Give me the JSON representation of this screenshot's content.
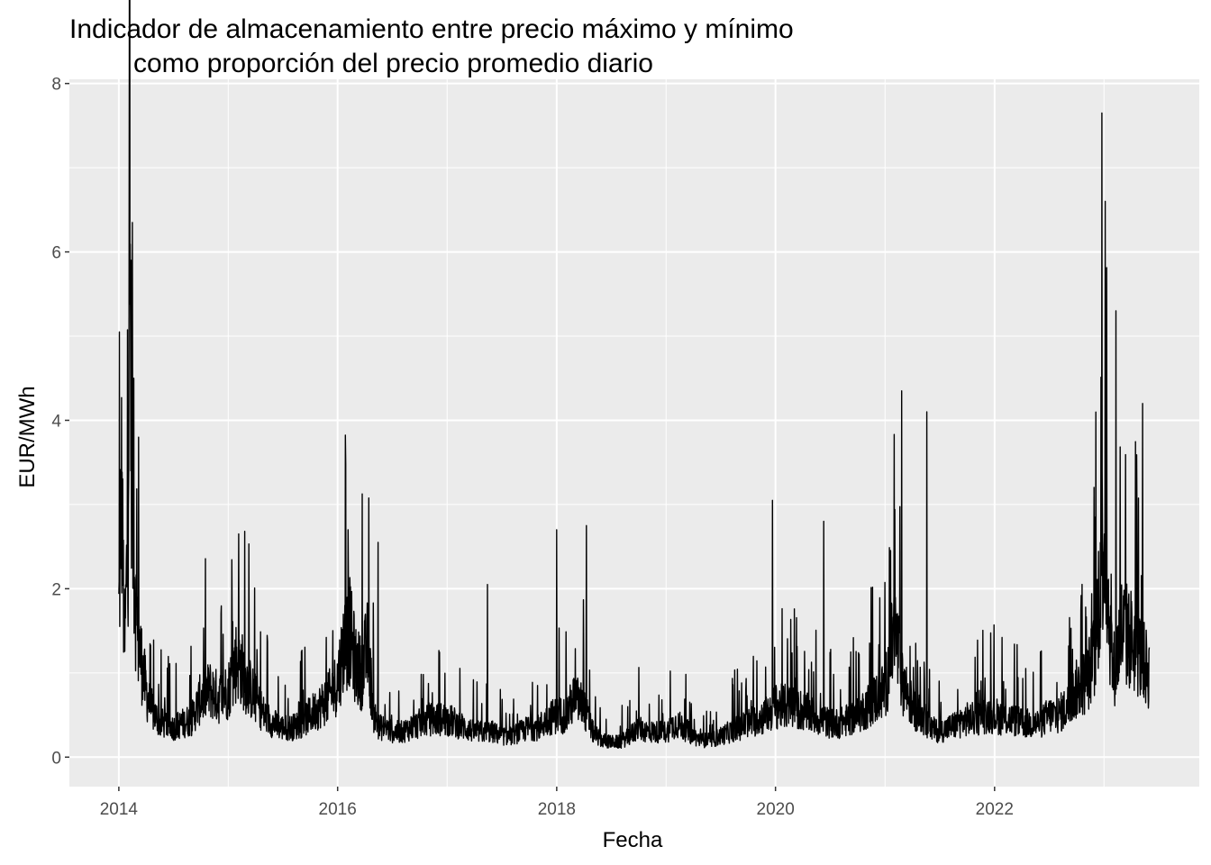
{
  "chart_data": {
    "type": "line",
    "title_lines": [
      "Indicador de almacenamiento entre precio máximo y mínimo",
      "como proporción del precio promedio diario"
    ],
    "xlabel": "Fecha",
    "ylabel": "EUR/MWh",
    "xlim": [
      "2013-07-20",
      "2023-11-15"
    ],
    "ylim": [
      -0.35,
      8.05
    ],
    "x_ticks": [
      "2014-01-01",
      "2016-01-01",
      "2018-01-01",
      "2020-01-01",
      "2022-01-01"
    ],
    "x_tick_labels": [
      "2014",
      "2016",
      "2018",
      "2020",
      "2022"
    ],
    "y_ticks": [
      0,
      2,
      4,
      6,
      8
    ],
    "y_tick_labels": [
      "0",
      "2",
      "4",
      "6",
      "8"
    ],
    "grid": true,
    "line_color": "#000000",
    "panel_background": "#ebebeb",
    "grid_color": "#ffffff",
    "series": [
      {
        "x": [
          "2014-01-01",
          "2014-01-10",
          "2014-01-20",
          "2014-02-01",
          "2014-02-05",
          "2014-02-15",
          "2014-02-25",
          "2014-03-05",
          "2014-03-15",
          "2014-04-01",
          "2014-04-15",
          "2014-05-01",
          "2014-05-20",
          "2014-06-10",
          "2014-07-01",
          "2014-08-01",
          "2014-09-01",
          "2014-10-01",
          "2014-11-01",
          "2014-12-01",
          "2015-01-01",
          "2015-02-01",
          "2015-03-01",
          "2015-04-01",
          "2015-05-01",
          "2015-06-01",
          "2015-07-01",
          "2015-08-01",
          "2015-09-01",
          "2015-10-01",
          "2015-11-01",
          "2015-12-01",
          "2016-01-01",
          "2016-01-20",
          "2016-02-10",
          "2016-03-01",
          "2016-03-20",
          "2016-04-10",
          "2016-05-01",
          "2016-05-20",
          "2016-06-10",
          "2016-07-01",
          "2016-08-01",
          "2016-09-01",
          "2016-10-01",
          "2016-11-01",
          "2016-12-01",
          "2017-01-01",
          "2017-02-01",
          "2017-03-01",
          "2017-04-01",
          "2017-05-01",
          "2017-06-01",
          "2017-07-01",
          "2017-08-01",
          "2017-09-01",
          "2017-10-01",
          "2017-11-01",
          "2017-12-01",
          "2018-01-01",
          "2018-02-01",
          "2018-03-01",
          "2018-04-01",
          "2018-05-01",
          "2018-06-01",
          "2018-07-01",
          "2018-08-01",
          "2018-09-01",
          "2018-10-01",
          "2018-11-01",
          "2018-12-01",
          "2019-01-01",
          "2019-02-01",
          "2019-03-01",
          "2019-04-01",
          "2019-05-01",
          "2019-06-01",
          "2019-07-01",
          "2019-08-01",
          "2019-09-01",
          "2019-10-01",
          "2019-11-01",
          "2019-12-01",
          "2020-01-01",
          "2020-02-01",
          "2020-03-01",
          "2020-04-01",
          "2020-05-01",
          "2020-06-01",
          "2020-07-01",
          "2020-08-01",
          "2020-09-01",
          "2020-10-01",
          "2020-11-01",
          "2020-12-01",
          "2021-01-01",
          "2021-02-01",
          "2021-03-01",
          "2021-04-01",
          "2021-05-01",
          "2021-06-01",
          "2021-07-01",
          "2021-08-01",
          "2021-09-01",
          "2021-10-01",
          "2021-11-01",
          "2021-12-01",
          "2022-01-01",
          "2022-02-01",
          "2022-03-01",
          "2022-04-01",
          "2022-05-01",
          "2022-06-01",
          "2022-07-01",
          "2022-08-01",
          "2022-09-01",
          "2022-10-01",
          "2022-11-01",
          "2022-12-01",
          "2023-01-01",
          "2023-01-15",
          "2023-02-01",
          "2023-03-01",
          "2023-04-01",
          "2023-05-01",
          "2023-06-01"
        ],
        "y": [
          1.7,
          3.2,
          1.2,
          2.8,
          6.3,
          3.0,
          1.9,
          1.4,
          1.2,
          0.8,
          0.6,
          0.5,
          0.4,
          0.4,
          0.35,
          0.4,
          0.45,
          0.7,
          0.8,
          0.7,
          0.8,
          1.2,
          0.9,
          0.7,
          0.5,
          0.4,
          0.35,
          0.35,
          0.4,
          0.5,
          0.6,
          0.7,
          0.9,
          1.3,
          1.5,
          1.1,
          1.0,
          1.3,
          0.5,
          0.35,
          0.35,
          0.3,
          0.3,
          0.35,
          0.4,
          0.45,
          0.45,
          0.45,
          0.4,
          0.35,
          0.3,
          0.3,
          0.3,
          0.25,
          0.25,
          0.3,
          0.35,
          0.35,
          0.45,
          0.5,
          0.5,
          0.7,
          0.6,
          0.3,
          0.2,
          0.18,
          0.18,
          0.25,
          0.35,
          0.3,
          0.3,
          0.3,
          0.4,
          0.35,
          0.25,
          0.2,
          0.2,
          0.25,
          0.3,
          0.35,
          0.4,
          0.45,
          0.5,
          0.6,
          0.6,
          0.6,
          0.55,
          0.5,
          0.45,
          0.4,
          0.4,
          0.45,
          0.5,
          0.6,
          0.7,
          0.8,
          1.5,
          0.9,
          0.6,
          0.5,
          0.35,
          0.3,
          0.35,
          0.4,
          0.45,
          0.45,
          0.5,
          0.5,
          0.45,
          0.45,
          0.4,
          0.4,
          0.4,
          0.5,
          0.5,
          0.6,
          0.8,
          0.9,
          1.2,
          2.8,
          1.8,
          1.0,
          1.5,
          1.4,
          1.2,
          1.0
        ],
        "peaks": [
          {
            "x": "2014-01-03",
            "y": 5.05
          },
          {
            "x": "2014-02-15",
            "y": 6.35
          },
          {
            "x": "2014-02-20",
            "y": 4.5
          },
          {
            "x": "2014-03-08",
            "y": 3.8
          },
          {
            "x": "2015-02-05",
            "y": 2.65
          },
          {
            "x": "2016-02-05",
            "y": 2.7
          },
          {
            "x": "2016-05-15",
            "y": 2.55
          },
          {
            "x": "2017-05-15",
            "y": 2.05
          },
          {
            "x": "2018-01-01",
            "y": 2.7
          },
          {
            "x": "2018-04-10",
            "y": 2.75
          },
          {
            "x": "2019-12-22",
            "y": 3.05
          },
          {
            "x": "2020-06-10",
            "y": 2.8
          },
          {
            "x": "2021-02-25",
            "y": 4.35
          },
          {
            "x": "2021-05-20",
            "y": 4.1
          },
          {
            "x": "2022-12-25",
            "y": 7.65
          },
          {
            "x": "2023-01-05",
            "y": 6.6
          },
          {
            "x": "2023-02-10",
            "y": 5.3
          },
          {
            "x": "2023-05-10",
            "y": 4.2
          }
        ]
      }
    ]
  }
}
